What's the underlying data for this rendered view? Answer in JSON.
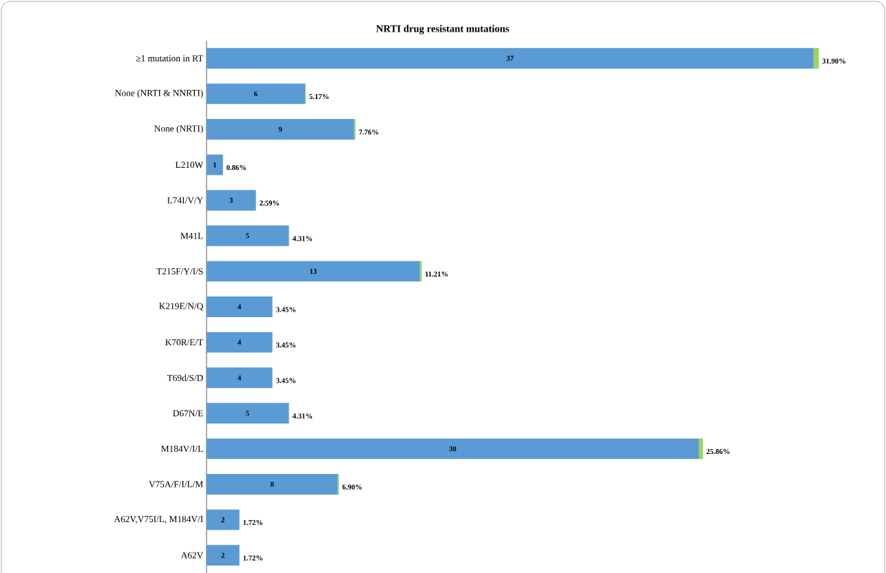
{
  "chart_data": {
    "type": "bar",
    "orientation": "horizontal",
    "stacked": true,
    "title": "NRTI drug resistant mutations",
    "categories": [
      "≥1 mutation in RT",
      "None (NRTI & NNRTI)",
      "None (NRTI)",
      "L210W",
      "L74I/V/Y",
      "M41L",
      "T215F/Y/I/S",
      "K219E/N/Q",
      "K70R/E/T",
      "T69d/S/D",
      "D67N/E",
      "M184V/I/L",
      "V75A/F/I/L/M",
      "A62V,V75I/L, M184V/I",
      "A62V"
    ],
    "series": [
      {
        "color": "#5b9bd5",
        "values": [
          37,
          6,
          9,
          1,
          3,
          5,
          13,
          4,
          4,
          4,
          5,
          30,
          8,
          2,
          2
        ],
        "value_labels": [
          "37",
          "6",
          "9",
          "1",
          "3",
          "5",
          "13",
          "4",
          "4",
          "4",
          "5",
          "30",
          "8",
          "2",
          "2"
        ]
      },
      {
        "color": "#9bd35f",
        "values": [
          0.319,
          0.0517,
          0.0776,
          0.0086,
          0.0259,
          0.0431,
          0.1121,
          0.0345,
          0.0345,
          0.0345,
          0.0431,
          0.2586,
          0.069,
          0.0172,
          0.0172
        ],
        "value_labels": [
          "31.90%",
          "5.17%",
          "7.76%",
          "0.86%",
          "2.59%",
          "4.31%",
          "11.21%",
          "3.45%",
          "3.45%",
          "3.45%",
          "4.31%",
          "25.86%",
          "6.90%",
          "1.72%",
          "1.72%"
        ]
      }
    ]
  }
}
